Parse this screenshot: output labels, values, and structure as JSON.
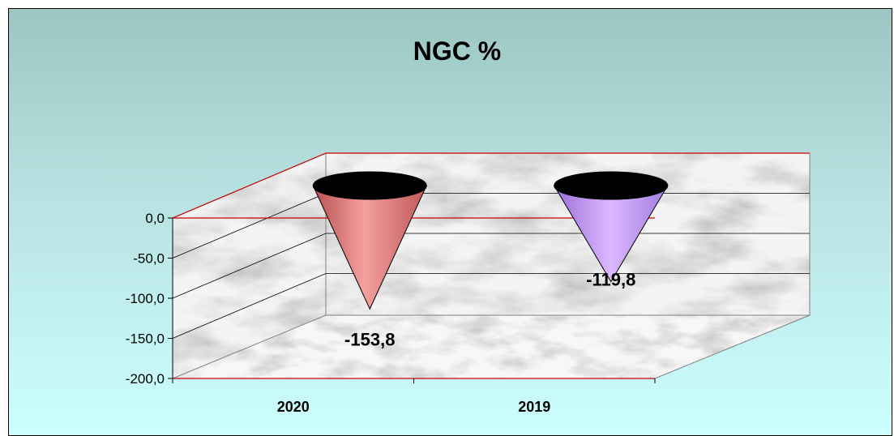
{
  "chart_data": {
    "type": "bar",
    "subtype": "3d-cone",
    "title": "NGC %",
    "categories": [
      "2020",
      "2019"
    ],
    "series": [
      {
        "values": [
          -153.8,
          -119.8
        ]
      }
    ],
    "data_labels": [
      "-153,8",
      "-119,8"
    ],
    "point_colors": [
      "#f08080",
      "#cc99ff"
    ],
    "y_ticks": [
      0,
      -50,
      -100,
      -150,
      -200
    ],
    "y_tick_labels": [
      "0,0",
      "-50,0",
      "-100,0",
      "-150,0",
      "-200,0"
    ],
    "ylim": [
      -200,
      0
    ],
    "xlabel": "",
    "ylabel": "",
    "grid": true,
    "legend": "none",
    "background": "marble"
  }
}
